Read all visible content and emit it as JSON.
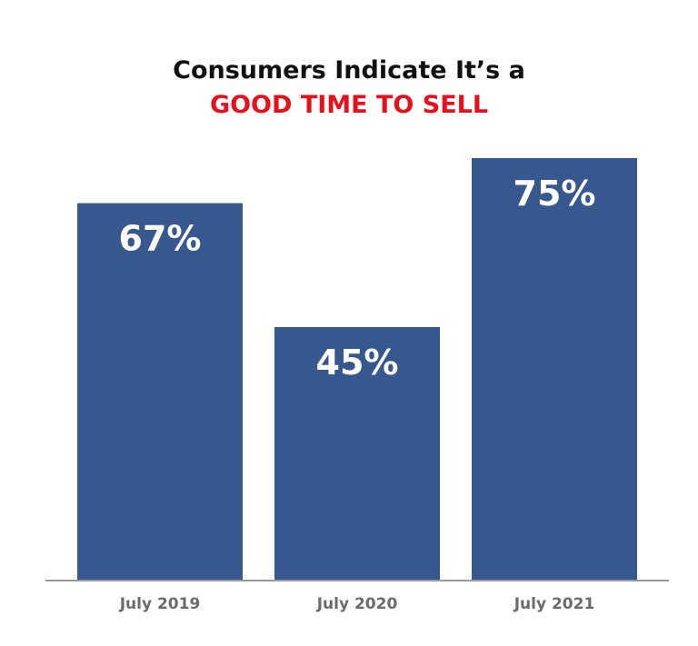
{
  "chart_data": {
    "type": "bar",
    "title": "Consumers Indicate It’s a",
    "subtitle": "GOOD TIME TO SELL",
    "categories": [
      "July 2019",
      "July 2020",
      "July 2021"
    ],
    "values": [
      67,
      45,
      75
    ],
    "data_labels": [
      "67%",
      "45%",
      "75%"
    ],
    "ylim": [
      0,
      100
    ],
    "xlabel": "",
    "ylabel": "",
    "grid": false,
    "legend": "none"
  },
  "colors": {
    "bar": "#36588e",
    "axis": "#999999",
    "title": "#111111",
    "subtitle": "#e8101a",
    "tick_label": "#6b6b6b"
  }
}
